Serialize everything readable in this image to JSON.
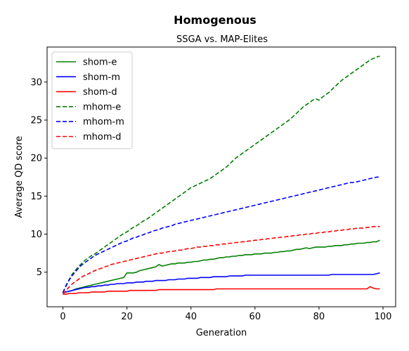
{
  "chart_data": {
    "type": "line",
    "title": "Homogenous",
    "subtitle": "SSGA vs. MAP-Elites",
    "xlabel": "Generation",
    "ylabel": "Average QD score",
    "xlim": [
      -4.95,
      103.95
    ],
    "ylim": [
      0.45,
      34.6
    ],
    "xticks": [
      0,
      20,
      40,
      60,
      80,
      100
    ],
    "yticks": [
      5,
      10,
      15,
      20,
      25,
      30
    ],
    "grid": false,
    "legend_position": "upper left",
    "x": {
      "start": 0,
      "end": 99,
      "step": 1
    },
    "series": [
      {
        "name": "shom-e",
        "color": "#008000",
        "dash": "solid",
        "values": [
          2.3,
          2.4,
          2.5,
          2.6,
          2.8,
          2.9,
          3.0,
          3.1,
          3.2,
          3.3,
          3.4,
          3.5,
          3.6,
          3.7,
          3.8,
          3.9,
          4.0,
          4.1,
          4.2,
          4.3,
          4.9,
          4.9,
          4.9,
          5.0,
          5.2,
          5.3,
          5.4,
          5.5,
          5.6,
          5.7,
          6.0,
          5.8,
          5.9,
          6.0,
          6.1,
          6.1,
          6.2,
          6.2,
          6.2,
          6.3,
          6.3,
          6.4,
          6.4,
          6.5,
          6.6,
          6.6,
          6.7,
          6.7,
          6.8,
          6.9,
          6.9,
          7.0,
          7.0,
          7.1,
          7.1,
          7.2,
          7.2,
          7.3,
          7.3,
          7.3,
          7.4,
          7.4,
          7.4,
          7.5,
          7.5,
          7.5,
          7.6,
          7.6,
          7.7,
          7.7,
          7.8,
          7.8,
          7.9,
          8.0,
          8.0,
          8.1,
          8.2,
          8.1,
          8.2,
          8.3,
          8.3,
          8.3,
          8.3,
          8.4,
          8.4,
          8.5,
          8.5,
          8.5,
          8.6,
          8.6,
          8.7,
          8.7,
          8.8,
          8.8,
          8.8,
          8.9,
          8.9,
          9.0,
          9.0,
          9.2
        ]
      },
      {
        "name": "shom-m",
        "color": "#0000ff",
        "dash": "solid",
        "values": [
          2.3,
          2.4,
          2.5,
          2.6,
          2.7,
          2.8,
          2.9,
          3.0,
          3.0,
          3.1,
          3.1,
          3.2,
          3.2,
          3.3,
          3.3,
          3.4,
          3.4,
          3.5,
          3.5,
          3.5,
          3.6,
          3.6,
          3.6,
          3.7,
          3.7,
          3.7,
          3.8,
          3.8,
          3.8,
          3.9,
          3.9,
          3.9,
          3.9,
          4.0,
          4.0,
          4.0,
          4.1,
          4.1,
          4.1,
          4.2,
          4.2,
          4.2,
          4.2,
          4.3,
          4.3,
          4.3,
          4.3,
          4.4,
          4.4,
          4.4,
          4.4,
          4.4,
          4.5,
          4.5,
          4.5,
          4.5,
          4.5,
          4.6,
          4.6,
          4.6,
          4.6,
          4.6,
          4.6,
          4.6,
          4.6,
          4.6,
          4.6,
          4.6,
          4.6,
          4.6,
          4.6,
          4.6,
          4.6,
          4.6,
          4.6,
          4.6,
          4.6,
          4.6,
          4.6,
          4.6,
          4.6,
          4.6,
          4.6,
          4.6,
          4.7,
          4.7,
          4.7,
          4.7,
          4.7,
          4.7,
          4.7,
          4.7,
          4.7,
          4.7,
          4.7,
          4.7,
          4.7,
          4.7,
          4.8,
          4.9
        ]
      },
      {
        "name": "shom-d",
        "color": "#ff0000",
        "dash": "solid",
        "values": [
          2.1,
          2.1,
          2.2,
          2.2,
          2.2,
          2.3,
          2.3,
          2.3,
          2.3,
          2.4,
          2.4,
          2.4,
          2.4,
          2.4,
          2.5,
          2.5,
          2.5,
          2.5,
          2.5,
          2.5,
          2.5,
          2.6,
          2.6,
          2.6,
          2.6,
          2.6,
          2.6,
          2.6,
          2.6,
          2.6,
          2.7,
          2.7,
          2.7,
          2.7,
          2.7,
          2.7,
          2.7,
          2.7,
          2.7,
          2.7,
          2.7,
          2.7,
          2.7,
          2.7,
          2.7,
          2.7,
          2.7,
          2.7,
          2.8,
          2.8,
          2.8,
          2.8,
          2.8,
          2.8,
          2.8,
          2.8,
          2.8,
          2.8,
          2.8,
          2.8,
          2.8,
          2.8,
          2.8,
          2.8,
          2.8,
          2.8,
          2.8,
          2.8,
          2.8,
          2.8,
          2.8,
          2.8,
          2.8,
          2.8,
          2.8,
          2.8,
          2.8,
          2.8,
          2.8,
          2.8,
          2.8,
          2.8,
          2.8,
          2.8,
          2.8,
          2.8,
          2.8,
          2.8,
          2.8,
          2.8,
          2.8,
          2.8,
          2.8,
          2.8,
          2.8,
          2.8,
          3.1,
          2.9,
          2.8,
          2.8
        ]
      },
      {
        "name": "mhom-e",
        "color": "#008000",
        "dash": "dashed",
        "values": [
          2.3,
          3.3,
          4.1,
          4.8,
          5.3,
          5.8,
          6.2,
          6.6,
          6.9,
          7.2,
          7.4,
          7.7,
          8.0,
          8.3,
          8.6,
          8.9,
          9.2,
          9.5,
          9.8,
          10.1,
          10.3,
          10.6,
          10.9,
          11.1,
          11.4,
          11.7,
          11.9,
          12.2,
          12.5,
          12.8,
          13.1,
          13.4,
          13.7,
          14.0,
          14.3,
          14.6,
          14.9,
          15.2,
          15.5,
          15.8,
          16.1,
          16.3,
          16.5,
          16.7,
          16.9,
          17.1,
          17.3,
          17.6,
          17.9,
          18.2,
          18.5,
          18.8,
          19.2,
          19.6,
          20.0,
          20.3,
          20.6,
          20.9,
          21.2,
          21.5,
          21.8,
          22.1,
          22.4,
          22.7,
          23.0,
          23.3,
          23.6,
          23.9,
          24.2,
          24.5,
          24.8,
          25.1,
          25.5,
          25.9,
          26.3,
          26.7,
          27.0,
          27.3,
          27.6,
          27.8,
          27.6,
          28.0,
          28.3,
          28.6,
          29.0,
          29.4,
          29.8,
          30.2,
          30.5,
          30.8,
          31.1,
          31.4,
          31.7,
          32.0,
          32.3,
          32.6,
          32.9,
          33.1,
          33.3,
          33.4
        ]
      },
      {
        "name": "mhom-m",
        "color": "#0000ff",
        "dash": "dashed",
        "values": [
          2.3,
          3.2,
          4.0,
          4.6,
          5.1,
          5.6,
          6.0,
          6.3,
          6.6,
          6.9,
          7.2,
          7.4,
          7.6,
          7.8,
          8.0,
          8.2,
          8.4,
          8.6,
          8.8,
          9.0,
          9.1,
          9.3,
          9.5,
          9.6,
          9.8,
          9.9,
          10.1,
          10.2,
          10.4,
          10.5,
          10.6,
          10.8,
          10.9,
          11.0,
          11.1,
          11.3,
          11.4,
          11.5,
          11.6,
          11.7,
          11.8,
          11.9,
          12.0,
          12.1,
          12.2,
          12.3,
          12.4,
          12.5,
          12.6,
          12.7,
          12.8,
          12.9,
          13.0,
          13.1,
          13.2,
          13.3,
          13.4,
          13.5,
          13.6,
          13.7,
          13.8,
          13.9,
          14.0,
          14.1,
          14.2,
          14.3,
          14.4,
          14.5,
          14.6,
          14.7,
          14.8,
          14.9,
          15.0,
          15.1,
          15.2,
          15.3,
          15.4,
          15.5,
          15.6,
          15.7,
          15.8,
          15.9,
          16.0,
          16.1,
          16.2,
          16.3,
          16.4,
          16.5,
          16.6,
          16.7,
          16.8,
          16.8,
          16.9,
          17.0,
          17.1,
          17.2,
          17.3,
          17.4,
          17.5,
          17.5
        ]
      },
      {
        "name": "mhom-d",
        "color": "#ff0000",
        "dash": "dashed",
        "values": [
          2.1,
          2.6,
          3.1,
          3.5,
          3.8,
          4.1,
          4.4,
          4.6,
          4.8,
          5.0,
          5.2,
          5.4,
          5.5,
          5.7,
          5.8,
          6.0,
          6.1,
          6.2,
          6.3,
          6.4,
          6.5,
          6.6,
          6.7,
          6.8,
          6.9,
          7.0,
          7.1,
          7.2,
          7.3,
          7.4,
          7.5,
          7.5,
          7.6,
          7.7,
          7.7,
          7.8,
          7.9,
          7.9,
          8.0,
          8.1,
          8.1,
          8.2,
          8.3,
          8.3,
          8.4,
          8.4,
          8.5,
          8.5,
          8.6,
          8.6,
          8.7,
          8.7,
          8.8,
          8.8,
          8.9,
          8.9,
          9.0,
          9.0,
          9.1,
          9.1,
          9.2,
          9.2,
          9.3,
          9.3,
          9.4,
          9.4,
          9.5,
          9.5,
          9.6,
          9.6,
          9.7,
          9.7,
          9.8,
          9.8,
          9.9,
          9.9,
          10.0,
          10.0,
          10.1,
          10.1,
          10.2,
          10.2,
          10.3,
          10.3,
          10.4,
          10.4,
          10.5,
          10.5,
          10.6,
          10.6,
          10.7,
          10.7,
          10.8,
          10.8,
          10.8,
          10.9,
          10.9,
          11.0,
          11.0,
          11.0
        ]
      }
    ]
  }
}
